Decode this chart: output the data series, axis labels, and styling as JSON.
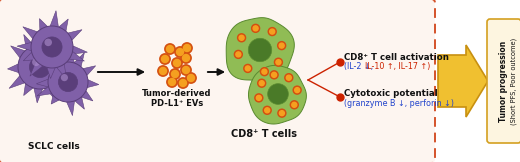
{
  "bg_color": "#ffffff",
  "outer_box_color": "#d4522a",
  "outer_box_facecolor": "#fdf5f0",
  "tumor_progression_text": "Tumor progression",
  "tumor_progression_sub": "(Short PFS, Poor outcome)",
  "sclc_label": "SCLC cells",
  "ev_label_line1": "Tumor-derived",
  "ev_label_line2": "PD-L1⁺ EVs",
  "cd8_label": "CD8⁺ T cells",
  "activation_title": "CD8⁺ T cell activation",
  "activation_detail_blue": "(IL-2 ↓, ",
  "activation_detail_red": "IL-10 ↑, IL-17 ↑)",
  "cytotoxic_title": "Cytotoxic potential",
  "cytotoxic_detail": "(granzyme B ↓, perforin ↓)",
  "purple_body": "#8060a8",
  "purple_edge": "#5a3e7a",
  "purple_nucleus": "#6040888",
  "green_body": "#90bc55",
  "green_edge": "#5a8a30",
  "green_nucleus": "#4a7a28",
  "orange_outer": "#d45010",
  "orange_inner": "#f5a020",
  "red_dot": "#cc2200",
  "blue_text": "#2244cc",
  "red_text": "#cc2200",
  "black": "#111111",
  "arrow_yellow": "#f0c030",
  "arrow_yellow_edge": "#c89010",
  "tp_box_color": "#fdf5e0",
  "tp_box_edge": "#d4a020"
}
